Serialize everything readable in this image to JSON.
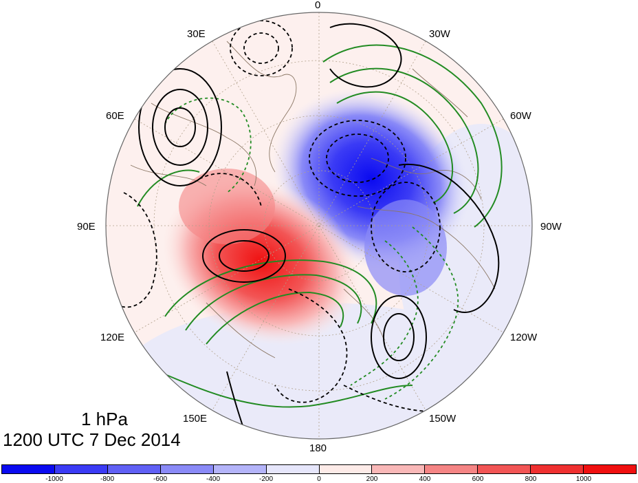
{
  "map": {
    "projection": "north polar stereographic",
    "longitude_labels": [
      "0",
      "30W",
      "60W",
      "90W",
      "120W",
      "150W",
      "180",
      "150E",
      "120E",
      "90E",
      "60E",
      "30E"
    ],
    "positive_shading_color": "#ff1a1a",
    "negative_shading_color": "#1a1aff",
    "positive_contour_color": "#000000",
    "negative_contour_style": "dashed",
    "second_field_color": "#228b22",
    "coastline_color": "#8b7765"
  },
  "caption": {
    "level": "1 hPa",
    "datetime": "1200 UTC 7 Dec 2014"
  },
  "colorbar": {
    "colors": [
      "#0a0af0",
      "#3b3bf5",
      "#6060f5",
      "#8a8af7",
      "#b4b4f9",
      "#e6e6fb",
      "#fdebe8",
      "#f9b8b8",
      "#f58585",
      "#f25555",
      "#ef3030",
      "#f01010"
    ],
    "tick_labels": [
      "-1000",
      "-800",
      "-600",
      "-400",
      "-200",
      "0",
      "200",
      "400",
      "600",
      "800",
      "1000"
    ]
  }
}
